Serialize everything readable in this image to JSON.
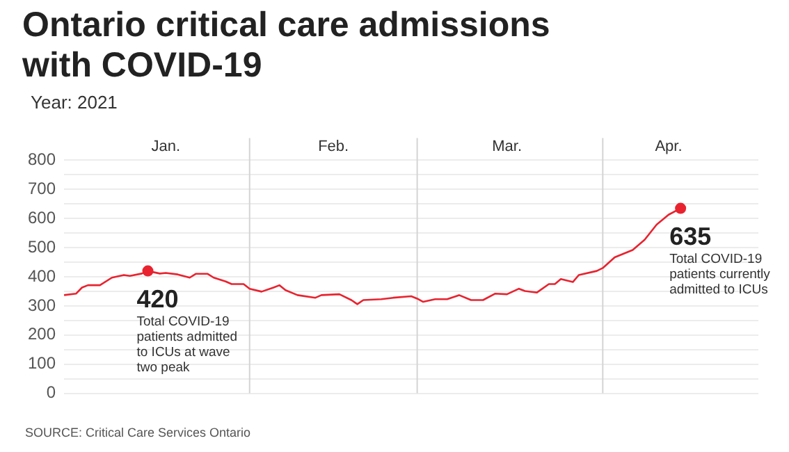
{
  "chart_data": {
    "type": "line",
    "title": "Ontario critical care admissions with COVID-19",
    "subtitle": "Year: 2021",
    "x": [
      "2021-01-01",
      "2021-01-03",
      "2021-01-04",
      "2021-01-05",
      "2021-01-07",
      "2021-01-09",
      "2021-01-11",
      "2021-01-12",
      "2021-01-14",
      "2021-01-15",
      "2021-01-17",
      "2021-01-18",
      "2021-01-20",
      "2021-01-22",
      "2021-01-23",
      "2021-01-25",
      "2021-01-26",
      "2021-01-28",
      "2021-01-29",
      "2021-01-31",
      "2021-02-01",
      "2021-02-03",
      "2021-02-05",
      "2021-02-06",
      "2021-02-07",
      "2021-02-09",
      "2021-02-12",
      "2021-02-13",
      "2021-02-16",
      "2021-02-18",
      "2021-02-19",
      "2021-02-20",
      "2021-02-23",
      "2021-02-25",
      "2021-02-28",
      "2021-03-01",
      "2021-03-02",
      "2021-03-04",
      "2021-03-06",
      "2021-03-08",
      "2021-03-10",
      "2021-03-12",
      "2021-03-14",
      "2021-03-16",
      "2021-03-18",
      "2021-03-19",
      "2021-03-21",
      "2021-03-23",
      "2021-03-24",
      "2021-03-25",
      "2021-03-27",
      "2021-03-28",
      "2021-03-31",
      "2021-04-01",
      "2021-04-03",
      "2021-04-06",
      "2021-04-08",
      "2021-04-10",
      "2021-04-12",
      "2021-04-14"
    ],
    "series": [
      {
        "color": "#e8232f",
        "values": [
          337,
          342,
          363,
          371,
          371,
          397,
          406,
          403,
          411,
          420,
          411,
          413,
          408,
          397,
          410,
          410,
          397,
          384,
          375,
          375,
          359,
          349,
          363,
          371,
          354,
          337,
          328,
          337,
          340,
          320,
          306,
          320,
          323,
          328,
          333,
          325,
          314,
          323,
          323,
          337,
          320,
          320,
          342,
          340,
          359,
          351,
          346,
          375,
          375,
          392,
          382,
          406,
          420,
          430,
          467,
          492,
          527,
          579,
          613,
          635
        ]
      }
    ],
    "xlim": [
      "2021-01-01",
      "2021-04-27"
    ],
    "xticks": [
      {
        "value": "2021-01-18",
        "label": "Jan."
      },
      {
        "value": "2021-02-15",
        "label": "Feb."
      },
      {
        "value": "2021-03-16",
        "label": "Mar."
      },
      {
        "value": "2021-04-12",
        "label": "Apr."
      }
    ],
    "ylim": [
      0,
      800
    ],
    "yticks": [
      0,
      {
        "value": 50,
        "label": null
      },
      100,
      {
        "value": 150,
        "label": null
      },
      200,
      {
        "value": 250,
        "label": null
      },
      300,
      {
        "value": 350,
        "label": null
      },
      400,
      {
        "value": 450,
        "label": null
      },
      500,
      {
        "value": 550,
        "label": null
      },
      600,
      {
        "value": 650,
        "label": null
      },
      700,
      {
        "value": 750,
        "label": null
      },
      800
    ],
    "grid": "y",
    "marker": "none",
    "line_style": "solid",
    "legend": false,
    "ref_lines": [
      {
        "axis": "x",
        "value": "2021-02-01",
        "color": "#d4d4d4"
      },
      {
        "axis": "x",
        "value": "2021-03-01",
        "color": "#d4d4d4"
      },
      {
        "axis": "x",
        "value": "2021-04-01",
        "color": "#d4d4d4"
      }
    ],
    "annotations": [
      {
        "text": "420",
        "x": "2021-01-15",
        "y": 420
      },
      "Total COVID-19 patients admitted to ICUs at wave two peak",
      {
        "text": "635",
        "x": "2021-04-14",
        "y": 635
      },
      "Total COVID-19 patients currently admitted to ICUs",
      "SOURCE:  Critical Care Services Ontario"
    ]
  }
}
